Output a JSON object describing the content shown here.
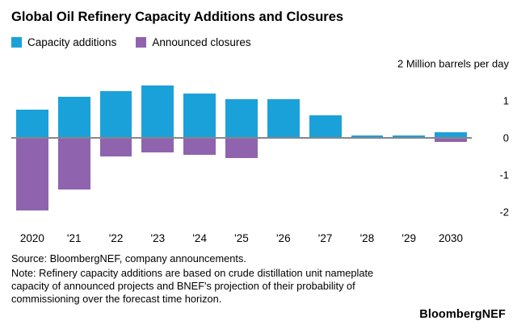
{
  "title": "Global Oil Refinery Capacity Additions and Closures",
  "chart_data": {
    "type": "bar",
    "title": "Global Oil Refinery Capacity Additions and Closures",
    "categories": [
      "2020",
      "'21",
      "'22",
      "'23",
      "'24",
      "'25",
      "'26",
      "'27",
      "'28",
      "'29",
      "2030"
    ],
    "series": [
      {
        "name": "Capacity additions",
        "color": "#1ba1d9",
        "values": [
          0.75,
          1.1,
          1.25,
          1.4,
          1.2,
          1.05,
          1.05,
          0.6,
          0.07,
          0.07,
          0.15
        ]
      },
      {
        "name": "Announced closures",
        "color": "#8f63ad",
        "values": [
          -1.95,
          -1.4,
          -0.5,
          -0.4,
          -0.45,
          -0.55,
          0,
          0,
          0,
          -0.03,
          -0.12
        ]
      }
    ],
    "xlabel": "",
    "ylabel": "Million barrels per day",
    "ylim": [
      -2.45,
      2.15
    ],
    "grid": false,
    "legend_position": "top-left",
    "y_axis_side": "right",
    "zero_line_color": "#85878a",
    "y_ticks": [
      {
        "value": 2,
        "label": "2 Million barrels per day"
      },
      {
        "value": 1,
        "label": "1"
      },
      {
        "value": 0,
        "label": "0"
      },
      {
        "value": -1,
        "label": "-1"
      },
      {
        "value": -2,
        "label": "-2"
      }
    ]
  },
  "footer": {
    "source": "Source: BloombergNEF, company announcements.",
    "note": "Note: Refinery capacity additions are based on crude distillation unit nameplate capacity of announced projects and BNEF's projection of their probability of commissioning over the forecast time horizon.",
    "logo": "BloombergNEF"
  }
}
